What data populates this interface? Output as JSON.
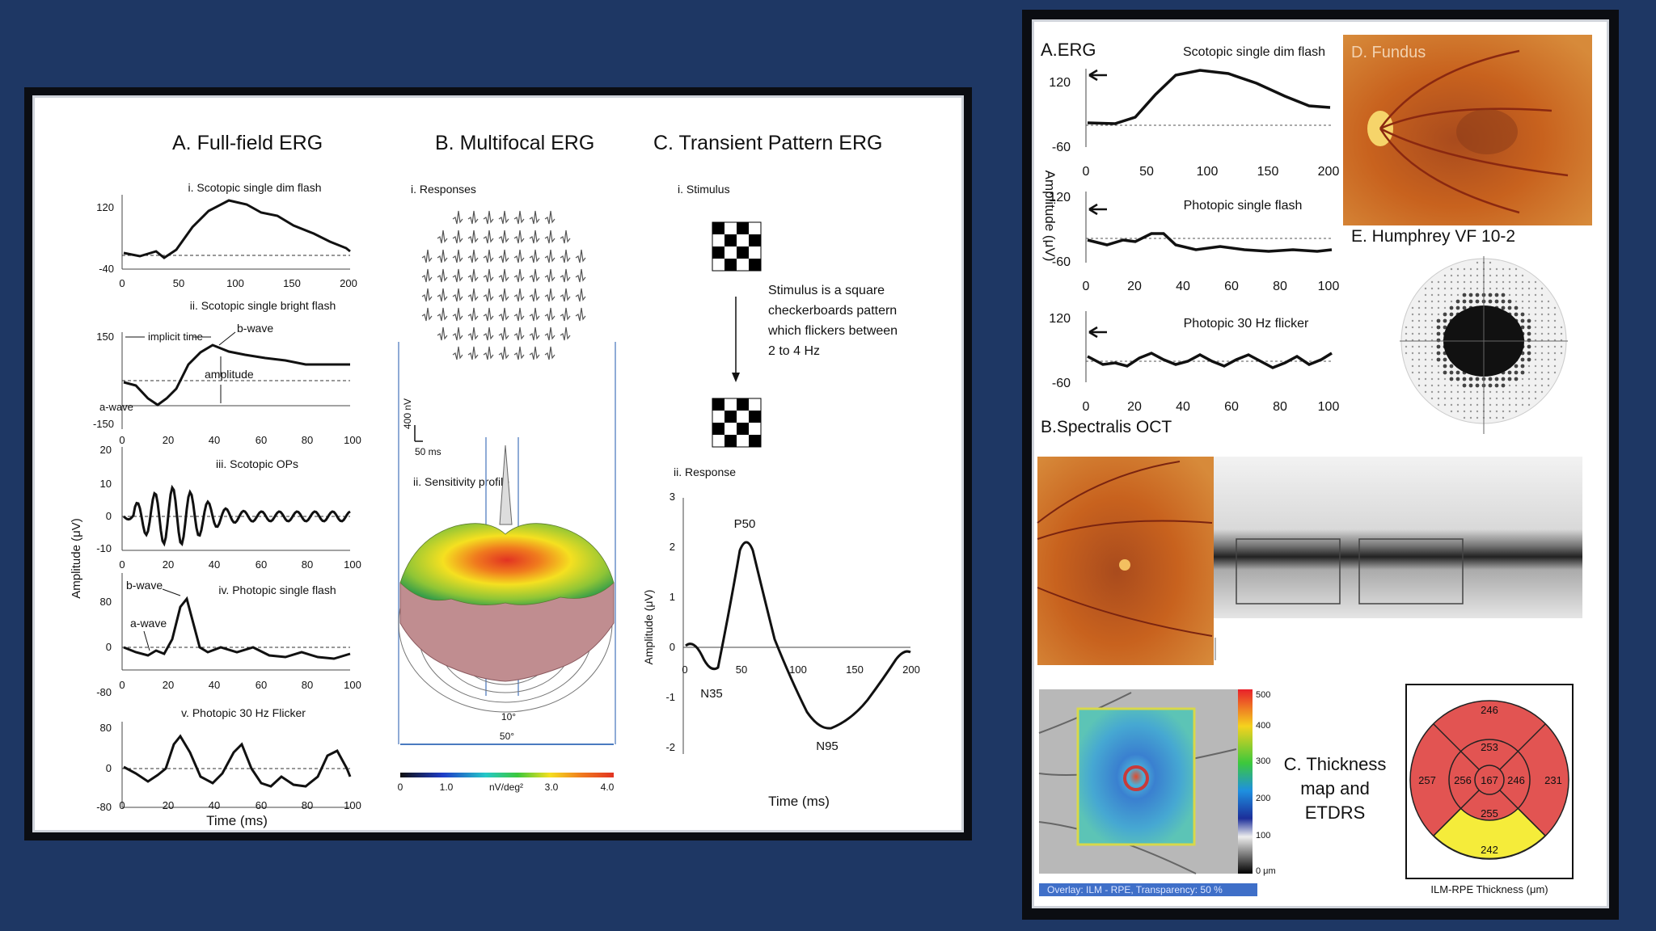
{
  "left": {
    "a_title": "A.  Full-field ERG",
    "b_title": "B.  Multifocal ERG",
    "c_title": "C.  Transient Pattern ERG",
    "amplitude_label": "Amplitude (μV)",
    "time_label": "Time (ms)",
    "traces": [
      {
        "title": "i. Scotopic single dim flash",
        "yticks": [
          "120",
          "-40"
        ],
        "xticks": [
          "0",
          "50",
          "100",
          "150",
          "200"
        ]
      },
      {
        "title": "ii. Scotopic single bright flash",
        "yticks": [
          "150",
          "-150"
        ],
        "xticks": [
          "0",
          "20",
          "40",
          "60",
          "80",
          "100"
        ],
        "annotations": {
          "implicit_time": "implicit time",
          "b_wave": "b-wave",
          "amplitude": "amplitude",
          "a_wave": "a-wave"
        }
      },
      {
        "title": "iii. Scotopic OPs",
        "yticks": [
          "20",
          "10",
          "0",
          "-10"
        ],
        "xticks": [
          "0",
          "20",
          "40",
          "60",
          "80",
          "100"
        ]
      },
      {
        "title": "iv. Photopic single flash",
        "yticks": [
          "80",
          "0",
          "-80"
        ],
        "xticks": [
          "0",
          "20",
          "40",
          "60",
          "80",
          "100"
        ],
        "annotations": {
          "b_wave": "b-wave",
          "a_wave": "a-wave"
        }
      },
      {
        "title": "v. Photopic 30 Hz Flicker",
        "yticks": [
          "80",
          "0",
          "-80"
        ],
        "xticks": [
          "0",
          "20",
          "40",
          "60",
          "80",
          "100"
        ]
      }
    ],
    "mf": {
      "responses": "i. Responses",
      "scale_v": "400 nV",
      "scale_t": "50 ms",
      "sensitivity": "ii. Sensitivity profile",
      "ten_deg": "10°",
      "fifty_deg": "50°",
      "colorbar_ticks": [
        "0",
        "1.0",
        "3.0",
        "4.0"
      ],
      "colorbar_unit": "nV/deg²"
    },
    "pattern": {
      "stimulus": "i. Stimulus",
      "description": [
        "Stimulus is a square",
        "checkerboards pattern",
        "which flickers between",
        "2 to 4 Hz"
      ],
      "response": "ii. Response",
      "yticks": [
        "3",
        "2",
        "1",
        "0",
        "-1",
        "-2"
      ],
      "xticks": [
        "0",
        "50",
        "100",
        "150",
        "200"
      ],
      "p50": "P50",
      "n35": "N35",
      "n95": "N95",
      "ylabel": "Amplitude (μV)",
      "xlabel": "Time (ms)"
    }
  },
  "right": {
    "erg_title": "A.ERG",
    "amplitude_label": "Amplitude (μV)",
    "traces": [
      {
        "title": "Scotopic single dim flash",
        "yticks": [
          "120",
          "-60"
        ],
        "xticks": [
          "0",
          "50",
          "100",
          "150",
          "200"
        ]
      },
      {
        "title": "Photopic single flash",
        "yticks": [
          "120",
          "-60"
        ],
        "xticks": [
          "0",
          "20",
          "40",
          "60",
          "80",
          "100"
        ]
      },
      {
        "title": "Photopic 30 Hz flicker",
        "yticks": [
          "120",
          "-60"
        ],
        "xticks": [
          "0",
          "20",
          "40",
          "60",
          "80",
          "100"
        ]
      }
    ],
    "fundus_title": "D. Fundus",
    "vf_title": "E. Humphrey VF 10-2",
    "oct_title": "B.Spectralis OCT",
    "thickness_title": [
      "C. Thickness",
      "map and",
      "ETDRS"
    ],
    "overlay_caption": "Overlay: ILM - RPE, Transparency: 50 %",
    "colorbar_ticks": [
      "500",
      "400",
      "300",
      "200",
      "100",
      "0 μm"
    ],
    "etdrs": {
      "outer_top": "246",
      "inner_top": "253",
      "outer_left": "257",
      "inner_left": "256",
      "center": "167",
      "inner_right": "246",
      "outer_right": "231",
      "inner_bottom": "255",
      "outer_bottom": "242"
    },
    "etdrs_caption": "ILM-RPE Thickness (μm)"
  }
}
